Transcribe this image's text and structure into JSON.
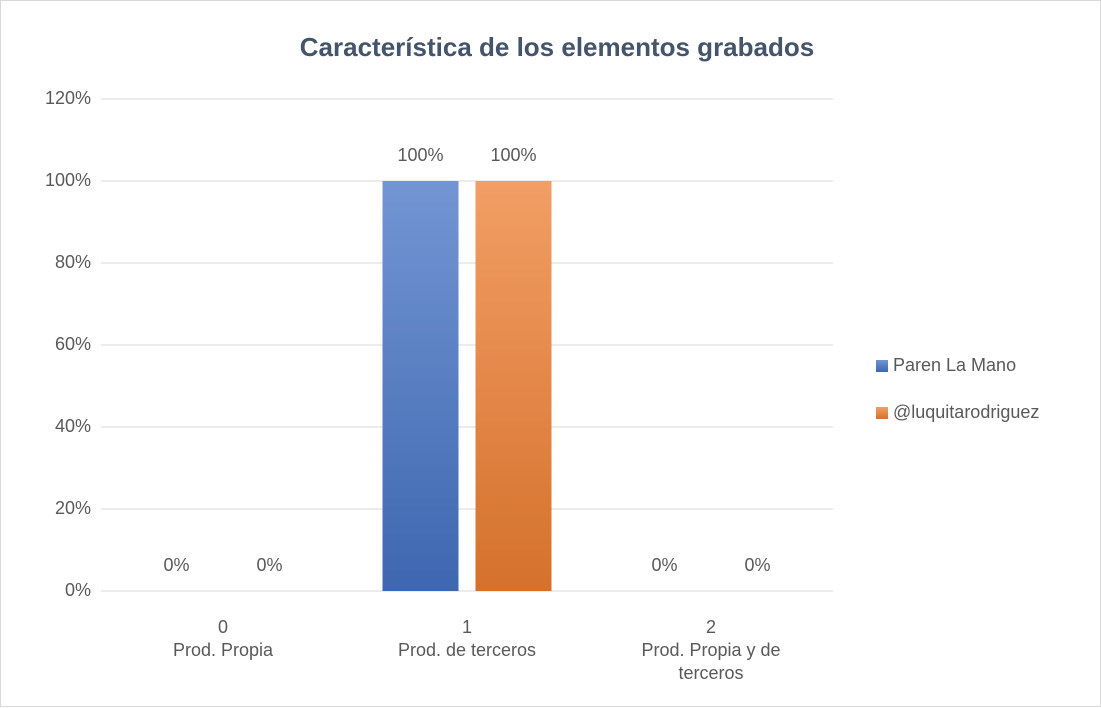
{
  "chart_data": {
    "type": "bar",
    "title": "Característica de los elementos grabados",
    "categories": [
      "0",
      "1",
      "2"
    ],
    "category_labels": [
      "Prod. Propia",
      "Prod. de terceros",
      "Prod. Propia y de terceros"
    ],
    "series": [
      {
        "name": "Paren La Mano",
        "color": "#4472c4",
        "values": [
          0,
          100,
          0
        ],
        "value_labels": [
          "0%",
          "100%",
          "0%"
        ]
      },
      {
        "name": "@luquitarodriguez",
        "color": "#ed7d31",
        "values": [
          0,
          100,
          0
        ],
        "value_labels": [
          "0%",
          "100%",
          "0%"
        ]
      }
    ],
    "ylim": [
      0,
      120
    ],
    "yticks": [
      {
        "value": 0,
        "label": "0%"
      },
      {
        "value": 20,
        "label": "20%"
      },
      {
        "value": 40,
        "label": "40%"
      },
      {
        "value": 60,
        "label": "60%"
      },
      {
        "value": 80,
        "label": "80%"
      },
      {
        "value": 100,
        "label": "100%"
      },
      {
        "value": 120,
        "label": "120%"
      }
    ],
    "grid": true,
    "legend": "right"
  }
}
